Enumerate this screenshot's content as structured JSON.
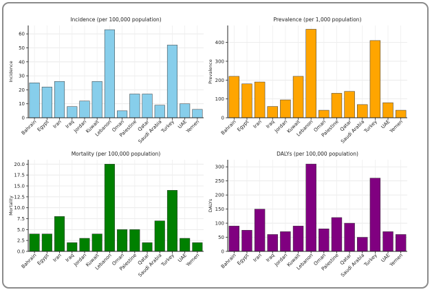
{
  "chart_data": [
    {
      "type": "bar",
      "title": "Incidence (per 100,000 population)",
      "xlabel": "",
      "ylabel": "Incidence",
      "color": "#87CEEB",
      "categories": [
        "Bahrain",
        "Egypt",
        "Iran",
        "Iraq",
        "Jordan",
        "Kuwait",
        "Lebanon",
        "Oman",
        "Palestine",
        "Qatar",
        "Saudi Arabia",
        "Turkey",
        "UAE",
        "Yemen"
      ],
      "values": [
        25,
        22,
        26,
        8,
        12,
        26,
        63,
        5,
        17,
        17,
        9,
        52,
        10,
        6
      ],
      "ylim": [
        0,
        66
      ],
      "yticks": [
        0,
        10,
        20,
        30,
        40,
        50,
        60
      ],
      "grid": true
    },
    {
      "type": "bar",
      "title": "Prevalence (per 1,000 population)",
      "xlabel": "",
      "ylabel": "Prevalence",
      "color": "#FFA500",
      "categories": [
        "Bahrain",
        "Egypt",
        "Iran",
        "Iraq",
        "Jordan",
        "Kuwait",
        "Lebanon",
        "Oman",
        "Palestine",
        "Qatar",
        "Saudi Arabia",
        "Turkey",
        "UAE",
        "Yemen"
      ],
      "values": [
        220,
        180,
        190,
        60,
        95,
        220,
        470,
        40,
        130,
        140,
        70,
        410,
        80,
        40
      ],
      "ylim": [
        0,
        490
      ],
      "yticks": [
        0,
        100,
        200,
        300,
        400
      ],
      "grid": true
    },
    {
      "type": "bar",
      "title": "Mortality (per 100,000 population)",
      "xlabel": "",
      "ylabel": "Mortality",
      "color": "#008000",
      "categories": [
        "Bahrain",
        "Egypt",
        "Iran",
        "Iraq",
        "Jordan",
        "Kuwait",
        "Lebanon",
        "Oman",
        "Palestine",
        "Qatar",
        "Saudi Arabia",
        "Turkey",
        "UAE",
        "Yemen"
      ],
      "values": [
        4,
        4,
        8,
        2,
        3,
        4,
        20,
        5,
        5,
        2,
        7,
        14,
        3,
        2
      ],
      "ylim": [
        0,
        21
      ],
      "yticks": [
        0.0,
        2.5,
        5.0,
        7.5,
        10.0,
        12.5,
        15.0,
        17.5,
        20.0
      ],
      "tick_decimals": 1,
      "grid": true
    },
    {
      "type": "bar",
      "title": "DALYs (per 100,000 population)",
      "xlabel": "",
      "ylabel": "DALYs",
      "color": "#800080",
      "categories": [
        "Bahrain",
        "Egypt",
        "Iran",
        "Iraq",
        "Jordan",
        "Kuwait",
        "Lebanon",
        "Oman",
        "Palestine",
        "Qatar",
        "Saudi Arabia",
        "Turkey",
        "UAE",
        "Yemen"
      ],
      "values": [
        90,
        75,
        150,
        60,
        70,
        90,
        310,
        80,
        120,
        100,
        50,
        260,
        70,
        60
      ],
      "ylim": [
        0,
        325
      ],
      "yticks": [
        0,
        50,
        100,
        150,
        200,
        250,
        300
      ],
      "grid": true
    }
  ]
}
